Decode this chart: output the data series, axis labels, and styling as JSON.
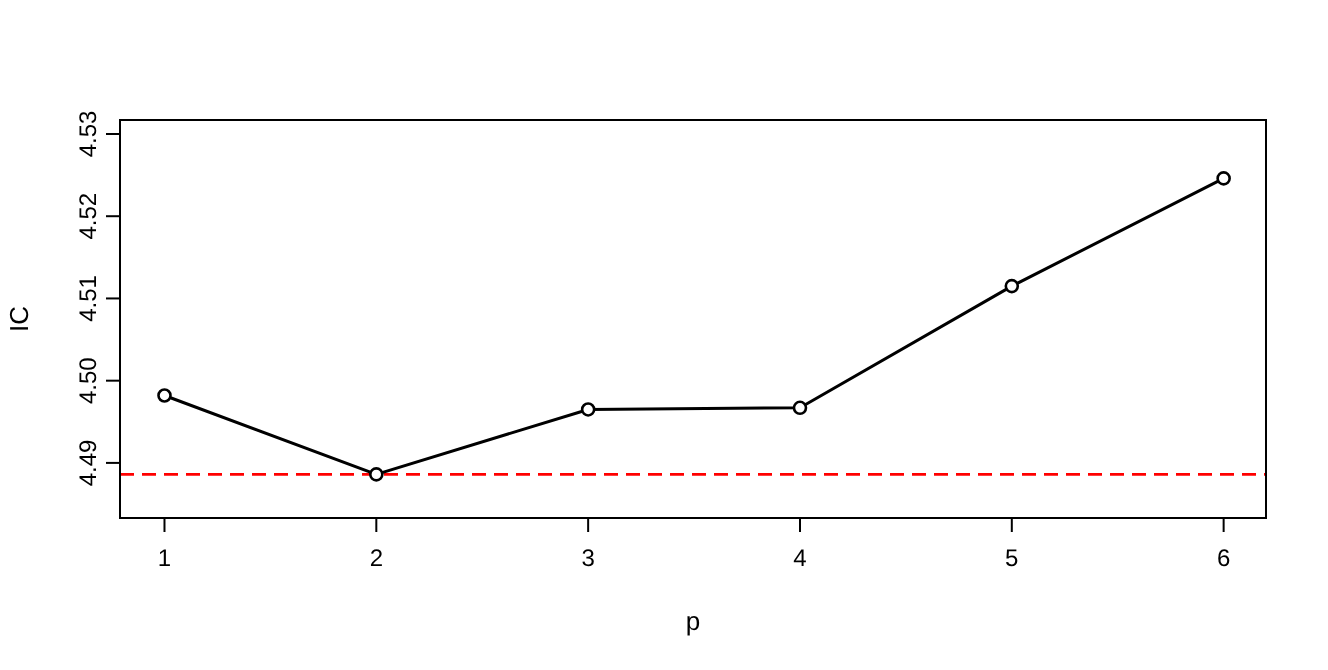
{
  "chart_data": {
    "type": "line",
    "xlabel": "p",
    "ylabel": "IC",
    "x": [
      1,
      2,
      3,
      4,
      5,
      6
    ],
    "series": [
      {
        "color": "#000000",
        "values": [
          4.4982,
          4.4886,
          4.4965,
          4.4967,
          4.5115,
          4.5246
        ]
      }
    ],
    "xlim": [
      0.79,
      6.2
    ],
    "xticks": [
      1,
      2,
      3,
      4,
      5,
      6
    ],
    "ylim": [
      4.4833,
      4.5317
    ],
    "yticks": [
      4.49,
      {
        "value": 4.5,
        "label": "4.50"
      },
      4.51,
      4.52,
      4.53
    ],
    "ref_lines": [
      {
        "axis": "y",
        "value": 4.4886,
        "color": "#ff0000",
        "line_style": "dashed"
      }
    ],
    "marker": "circle",
    "line_style": "solid"
  }
}
